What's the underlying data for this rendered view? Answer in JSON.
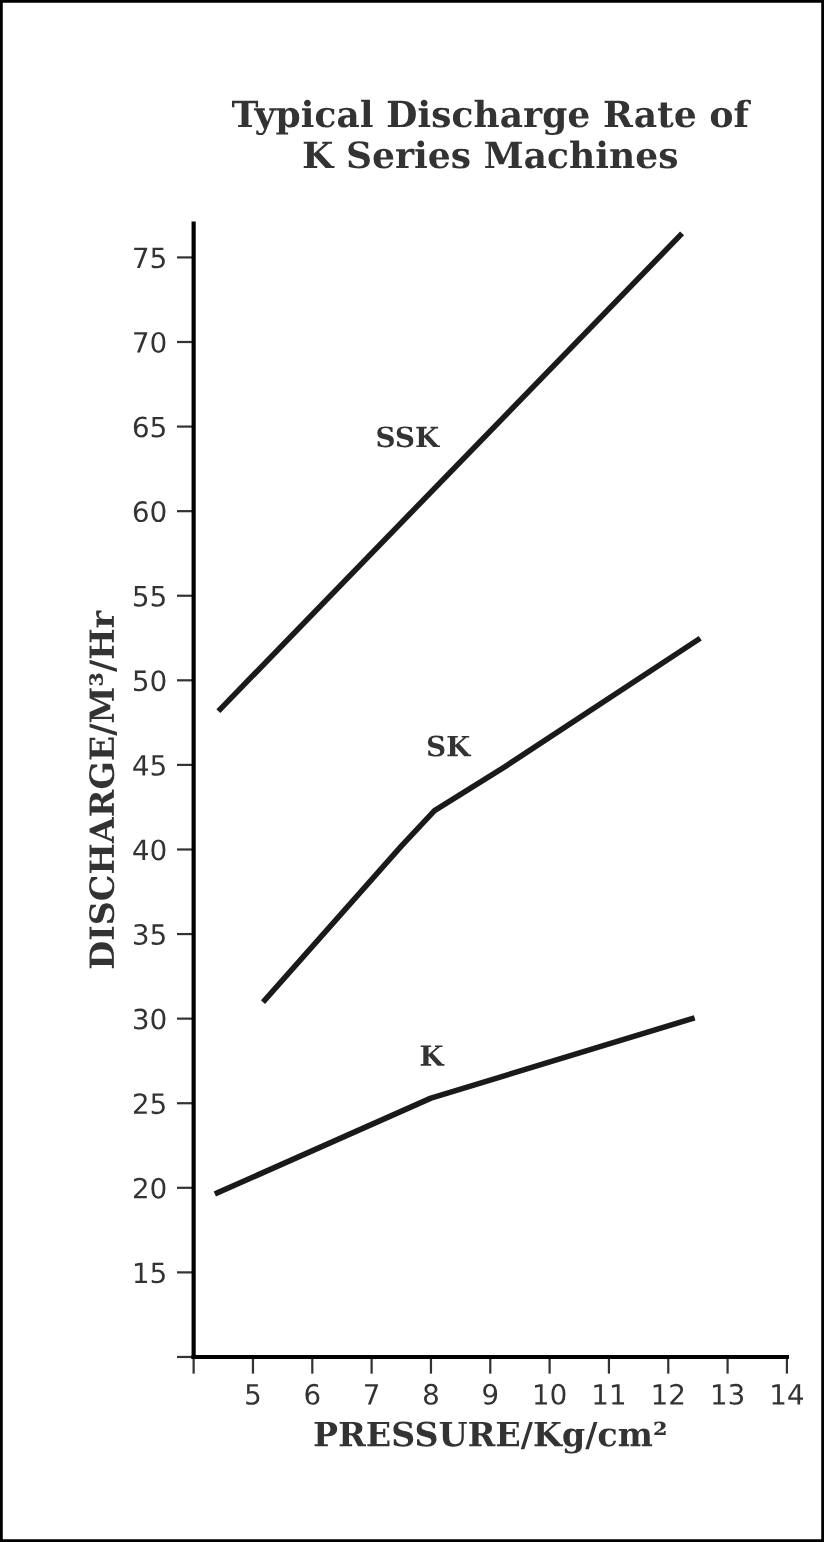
{
  "chart_data": {
    "type": "line",
    "title": "Typical Discharge Rate of\nK Series Machines",
    "xlabel": "PRESSURE/Kg/cm²",
    "ylabel": "DISCHARGE/M³/Hr",
    "series": [
      {
        "name": "SSK",
        "color": "#1a1a1a",
        "x": [
          4.45,
          12.2
        ],
        "values": [
          48.3,
          76.3
        ]
      },
      {
        "name": "SK",
        "color": "#1a1a1a",
        "x": [
          5.2,
          7.5,
          8.06,
          9.25,
          12.5
        ],
        "values": [
          31.1,
          40.2,
          42.3,
          44.9,
          52.4
        ]
      },
      {
        "name": "K",
        "color": "#1a1a1a",
        "x": [
          4.4,
          8.0,
          12.4
        ],
        "values": [
          19.7,
          25.3,
          30.0
        ]
      }
    ],
    "xlim": [
      4,
      14
    ],
    "ylim": [
      10,
      77
    ],
    "xticks": [
      {
        "value": 4,
        "label": null
      },
      5,
      6,
      7,
      8,
      9,
      10,
      11,
      12,
      13,
      14
    ],
    "yticks": [
      {
        "value": 10,
        "label": null
      },
      15,
      20,
      25,
      30,
      35,
      40,
      45,
      50,
      55,
      60,
      65,
      70,
      75
    ],
    "grid": false,
    "legend": false,
    "marker": "none",
    "line_style": "solid"
  }
}
